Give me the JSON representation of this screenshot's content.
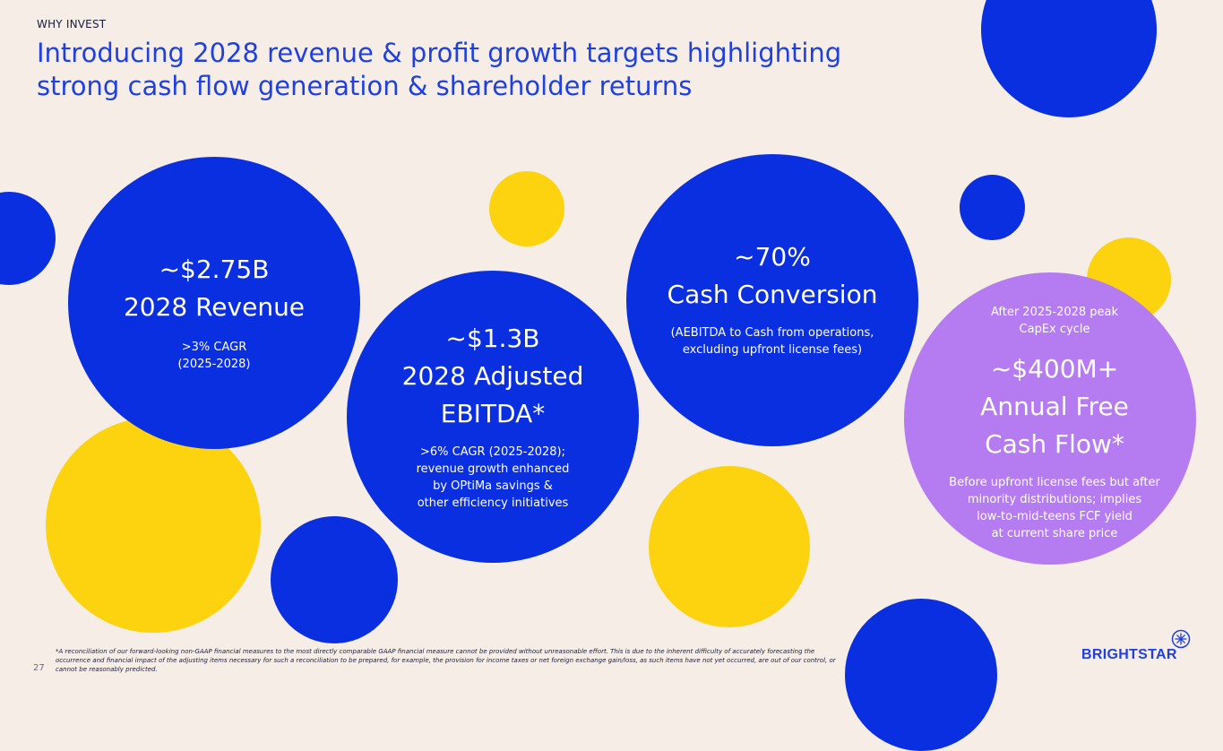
{
  "header": {
    "eyebrow": "WHY INVEST",
    "title_line1": "Introducing 2028 revenue & profit growth targets highlighting",
    "title_line2": "strong cash flow generation & shareholder returns"
  },
  "stats": [
    {
      "value": "~$2.75B",
      "label": "2028 Revenue",
      "detail_line1": ">3% CAGR",
      "detail_line2": "(2025-2028)"
    },
    {
      "value": "~$1.3B",
      "label_line1": "2028 Adjusted",
      "label_line2": "EBITDA*",
      "detail_line1": ">6% CAGR (2025-2028);",
      "detail_line2": "revenue growth enhanced",
      "detail_line3": "by OPtiMa savings &",
      "detail_line4": "other efficiency initiatives"
    },
    {
      "value": "~70%",
      "label": "Cash Conversion",
      "detail_line1": "(AEBITDA to Cash from operations,",
      "detail_line2": "excluding upfront license fees)"
    },
    {
      "pre_line1": "After 2025-2028 peak",
      "pre_line2": "CapEx cycle",
      "value": "~$400M+",
      "label_line1": "Annual Free",
      "label_line2": "Cash Flow*",
      "detail_line1": "Before upfront license fees but after",
      "detail_line2": "minority distributions; implies",
      "detail_line3": "low-to-mid-teens FCF yield",
      "detail_line4": "at current share price"
    }
  ],
  "footer": {
    "footnote": "*A reconciliation of our forward-looking non-GAAP financial measures to the most directly comparable GAAP financial measure cannot be provided without unreasonable effort. This is due to the inherent difficulty of accurately forecasting the occurrence and financial impact of the adjusting items necessary for such a reconciliation to be prepared, for example, the provision for income taxes or net foreign exchange gain/loss, as such items have not yet occurred, are out of our control, or cannot be reasonably predicted.",
    "page_number": "27",
    "logo_text": "BRIGHTSTAR"
  },
  "colors": {
    "background": "#F6EEE6",
    "blue": "#0A2FE0",
    "yellow": "#FDD20F",
    "purple": "#B57BF0",
    "title": "#1F3FE0"
  }
}
